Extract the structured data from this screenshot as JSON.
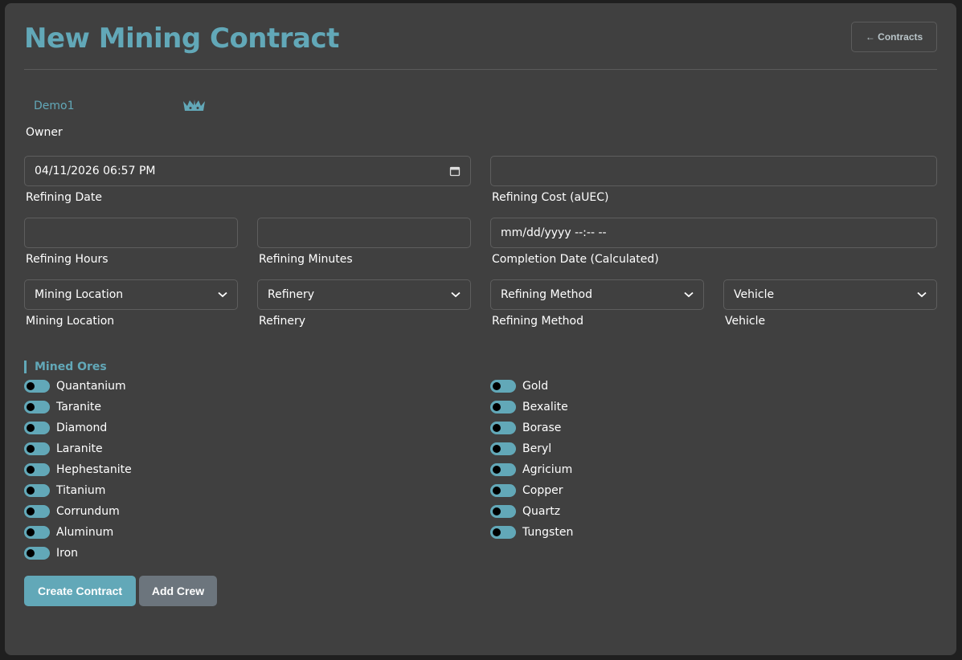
{
  "header": {
    "title": "New Mining Contract",
    "back_label": "← Contracts"
  },
  "owner": {
    "name": "Demo1",
    "label": "Owner",
    "icon": "crown-icon"
  },
  "fields": {
    "refining_date": {
      "value": "04/11/2026 06:57  PM",
      "label": "Refining Date"
    },
    "refining_cost": {
      "value": "",
      "label": "Refining Cost (aUEC)"
    },
    "refining_hours": {
      "value": "",
      "label": "Refining Hours"
    },
    "refining_minutes": {
      "value": "",
      "label": "Refining Minutes"
    },
    "completion_date": {
      "value": "mm/dd/yyyy --:--  --",
      "label": "Completion Date (Calculated)"
    },
    "mining_location": {
      "value": "Mining Location",
      "label": "Mining Location"
    },
    "refinery": {
      "value": "Refinery",
      "label": "Refinery"
    },
    "refining_method": {
      "value": "Refining Method",
      "label": "Refining Method"
    },
    "vehicle": {
      "value": "Vehicle",
      "label": "Vehicle"
    }
  },
  "ores": {
    "title": "Mined Ores",
    "left": [
      "Quantanium",
      "Taranite",
      "Diamond",
      "Laranite",
      "Hephestanite",
      "Titanium",
      "Corrundum",
      "Aluminum",
      "Iron"
    ],
    "right": [
      "Gold",
      "Bexalite",
      "Borase",
      "Beryl",
      "Agricium",
      "Copper",
      "Quartz",
      "Tungsten"
    ]
  },
  "actions": {
    "create": "Create Contract",
    "add_crew": "Add Crew"
  },
  "colors": {
    "accent": "#62a8b8",
    "panel": "#404040",
    "secondary_button": "#6c757d"
  }
}
